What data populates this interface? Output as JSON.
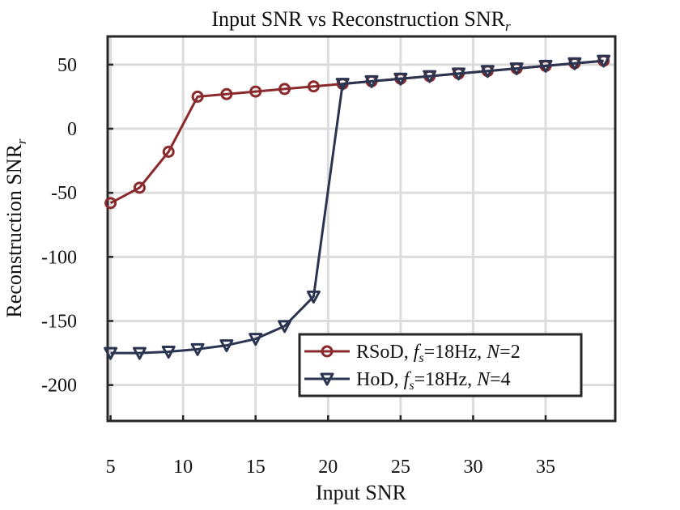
{
  "chart_data": {
    "type": "line",
    "title": "Input SNR vs Reconstruction SNR",
    "title_subscript": "r",
    "xlabel": "Input SNR",
    "ylabel": "Reconstruction SNR",
    "ylabel_subscript": "r",
    "xlim": [
      4.8,
      39.8
    ],
    "ylim": [
      -228,
      72
    ],
    "xticks": [
      5,
      10,
      15,
      20,
      25,
      30,
      35
    ],
    "yticks": [
      50,
      0,
      -50,
      -100,
      -150,
      -200
    ],
    "grid": true,
    "legend_position": "bottom-right",
    "x": [
      5,
      7,
      9,
      11,
      13,
      15,
      17,
      19,
      21,
      23,
      25,
      27,
      29,
      31,
      33,
      35,
      37,
      39
    ],
    "series": [
      {
        "name": "RSoD",
        "legend_label": "RSoD, fs=18Hz, N=2",
        "fs_label": "18Hz",
        "n_value": "2",
        "color": "#8b2a2c",
        "marker": "circle",
        "values": [
          -58,
          -46,
          -18,
          25,
          27,
          29,
          31,
          33,
          35,
          37,
          39,
          41,
          43,
          45,
          47,
          49,
          51,
          53
        ]
      },
      {
        "name": "HoD",
        "legend_label": "HoD, fs=18Hz, N=4",
        "fs_label": "18Hz",
        "n_value": "4",
        "color": "#2b3551",
        "marker": "triangle-down",
        "values": [
          -175,
          -175,
          -174,
          -172,
          -169,
          -164,
          -154,
          -131,
          35,
          37,
          39,
          41,
          43,
          45,
          47,
          49,
          51,
          53
        ]
      }
    ]
  }
}
